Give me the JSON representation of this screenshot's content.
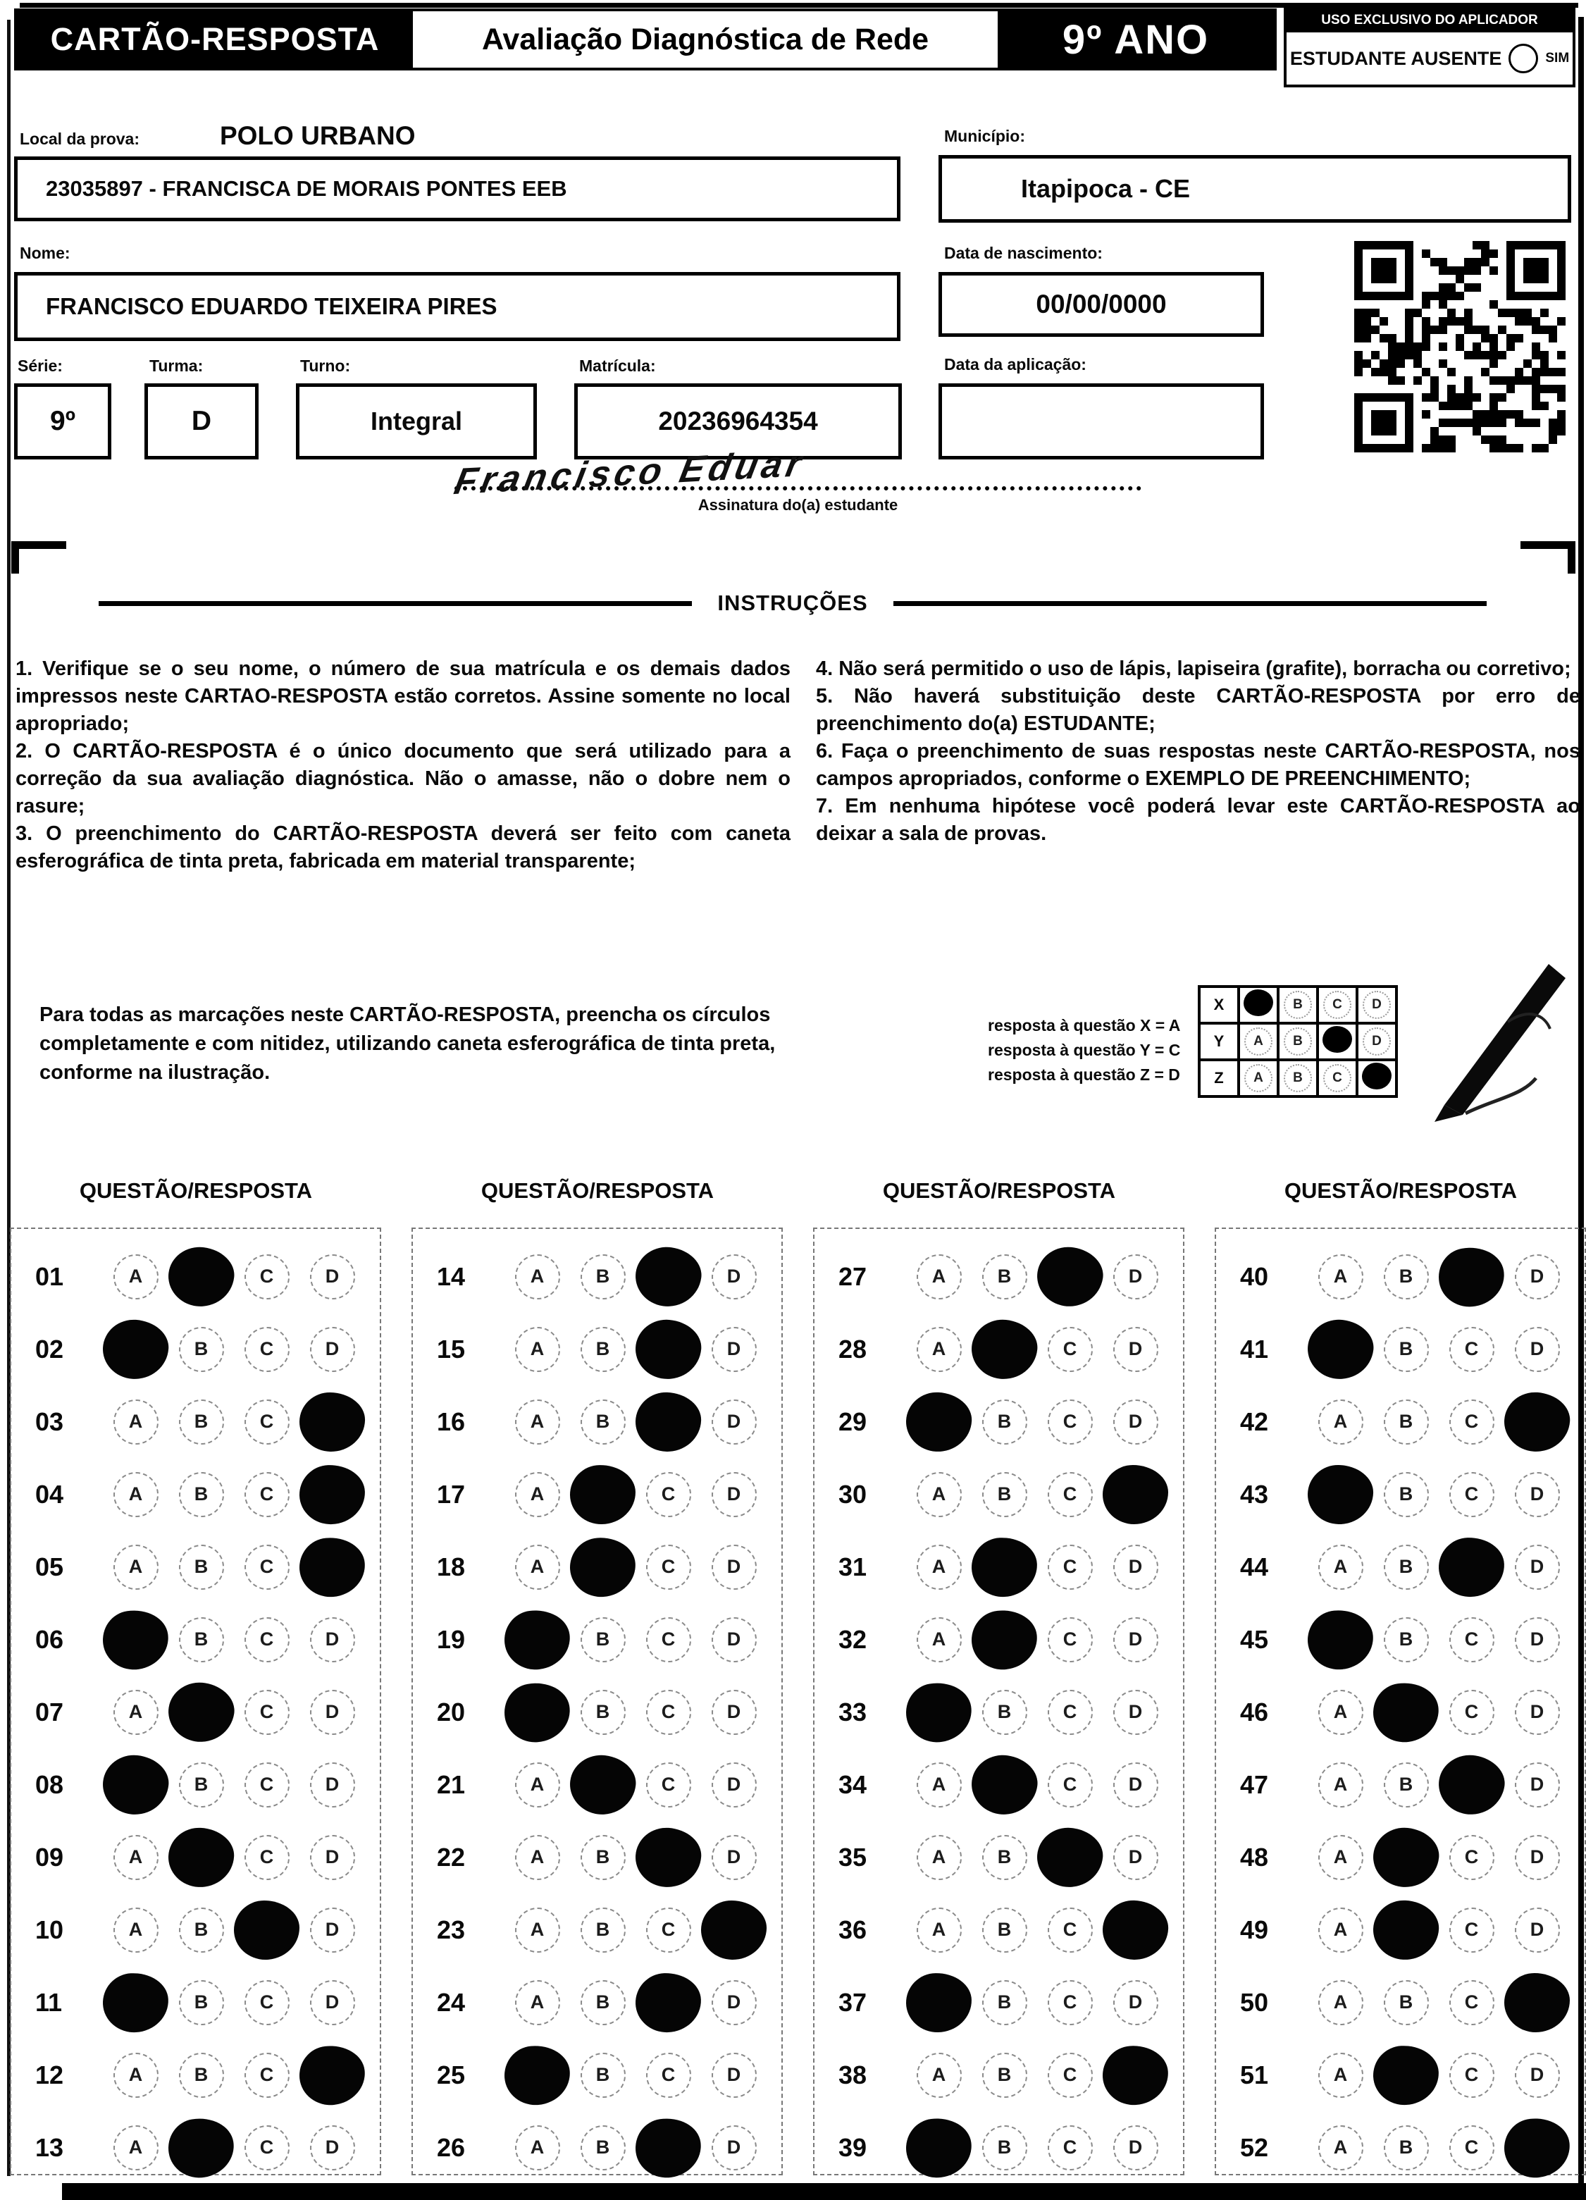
{
  "header": {
    "card_title": "CARTÃO-RESPOSTA",
    "exam_title": "Avaliação Diagnóstica de Rede",
    "grade": "9º ANO",
    "applicator_title": "USO EXCLUSIVO DO APLICADOR",
    "absent_label": "ESTUDANTE AUSENTE",
    "absent_option": "SIM"
  },
  "form": {
    "local_label": "Local da prova:",
    "local_value": "POLO URBANO",
    "school": "23035897 - FRANCISCA DE MORAIS PONTES EEB",
    "nome_label": "Nome:",
    "nome_value": "FRANCISCO EDUARDO TEIXEIRA PIRES",
    "municipio_label": "Município:",
    "municipio_value": "Itapipoca - CE",
    "nascimento_label": "Data de nascimento:",
    "nascimento_value": "00/00/0000",
    "serie_label": "Série:",
    "serie_value": "9º",
    "turma_label": "Turma:",
    "turma_value": "D",
    "turno_label": "Turno:",
    "turno_value": "Integral",
    "matricula_label": "Matrícula:",
    "matricula_value": "20236964354",
    "aplicacao_label": "Data da aplicação:",
    "aplicacao_value": "",
    "signature_text": "Francisco Eduar",
    "signature_caption": "Assinatura do(a) estudante"
  },
  "instructions": {
    "title": "INSTRUÇÕES",
    "left": [
      "1. Verifique se o seu nome, o número de sua matrícula e os demais dados impressos neste CARTAO-RESPOSTA estão corretos. Assine somente no local apropriado;",
      "2. O CARTÃO-RESPOSTA é o único documento que será utilizado para a correção da sua avaliação diagnóstica. Não o amasse, não o dobre nem o rasure;",
      "3. O preenchimento do CARTÃO-RESPOSTA deverá ser feito com caneta esferográfica de tinta preta, fabricada em material transparente;"
    ],
    "right": [
      "4. Não será permitido o uso de lápis, lapiseira (grafite), borracha ou corretivo;",
      "5. Não haverá substituição deste CARTÃO-RESPOSTA por erro de preenchimento do(a) ESTUDANTE;",
      "6. Faça o preenchimento de suas respostas neste CARTÃO-RESPOSTA, nos campos apropriados, conforme o EXEMPLO DE PREENCHIMENTO;",
      "7. Em nenhuma hipótese você poderá levar este CARTÃO-RESPOSTA ao deixar a sala de provas."
    ]
  },
  "fill_note": "Para todas as marcações neste CARTÃO-RESPOSTA, preencha os círculos completamente e com nitidez, utilizando caneta esferográfica de tinta preta, conforme na ilustração.",
  "example": {
    "legend": [
      "resposta à questão X = A",
      "resposta à questão Y = C",
      "resposta à questão Z = D"
    ],
    "options": [
      "A",
      "B",
      "C",
      "D"
    ],
    "rows": [
      {
        "label": "X",
        "marked": "A"
      },
      {
        "label": "Y",
        "marked": "C"
      },
      {
        "label": "Z",
        "marked": "D"
      }
    ]
  },
  "answers": {
    "column_header": "QUESTÃO/RESPOSTA",
    "options": [
      "A",
      "B",
      "C",
      "D"
    ],
    "columns": [
      [
        {
          "q": "01",
          "marked": "B"
        },
        {
          "q": "02",
          "marked": "A"
        },
        {
          "q": "03",
          "marked": "D"
        },
        {
          "q": "04",
          "marked": "D"
        },
        {
          "q": "05",
          "marked": "D"
        },
        {
          "q": "06",
          "marked": "A"
        },
        {
          "q": "07",
          "marked": "B"
        },
        {
          "q": "08",
          "marked": "A"
        },
        {
          "q": "09",
          "marked": "B"
        },
        {
          "q": "10",
          "marked": "C"
        },
        {
          "q": "11",
          "marked": "A"
        },
        {
          "q": "12",
          "marked": "D"
        },
        {
          "q": "13",
          "marked": "B"
        }
      ],
      [
        {
          "q": "14",
          "marked": "C"
        },
        {
          "q": "15",
          "marked": "C"
        },
        {
          "q": "16",
          "marked": "C"
        },
        {
          "q": "17",
          "marked": "B"
        },
        {
          "q": "18",
          "marked": "B"
        },
        {
          "q": "19",
          "marked": "A"
        },
        {
          "q": "20",
          "marked": "A"
        },
        {
          "q": "21",
          "marked": "B"
        },
        {
          "q": "22",
          "marked": "C"
        },
        {
          "q": "23",
          "marked": "D"
        },
        {
          "q": "24",
          "marked": "C"
        },
        {
          "q": "25",
          "marked": "A"
        },
        {
          "q": "26",
          "marked": "C"
        }
      ],
      [
        {
          "q": "27",
          "marked": "C"
        },
        {
          "q": "28",
          "marked": "B"
        },
        {
          "q": "29",
          "marked": "A"
        },
        {
          "q": "30",
          "marked": "D"
        },
        {
          "q": "31",
          "marked": "B"
        },
        {
          "q": "32",
          "marked": "B"
        },
        {
          "q": "33",
          "marked": "A"
        },
        {
          "q": "34",
          "marked": "B"
        },
        {
          "q": "35",
          "marked": "C"
        },
        {
          "q": "36",
          "marked": "D"
        },
        {
          "q": "37",
          "marked": "A"
        },
        {
          "q": "38",
          "marked": "D"
        },
        {
          "q": "39",
          "marked": "A"
        }
      ],
      [
        {
          "q": "40",
          "marked": "C"
        },
        {
          "q": "41",
          "marked": "A"
        },
        {
          "q": "42",
          "marked": "D"
        },
        {
          "q": "43",
          "marked": "A"
        },
        {
          "q": "44",
          "marked": "C"
        },
        {
          "q": "45",
          "marked": "A"
        },
        {
          "q": "46",
          "marked": "B"
        },
        {
          "q": "47",
          "marked": "C"
        },
        {
          "q": "48",
          "marked": "B"
        },
        {
          "q": "49",
          "marked": "B"
        },
        {
          "q": "50",
          "marked": "D"
        },
        {
          "q": "51",
          "marked": "B"
        },
        {
          "q": "52",
          "marked": "D"
        }
      ]
    ]
  }
}
